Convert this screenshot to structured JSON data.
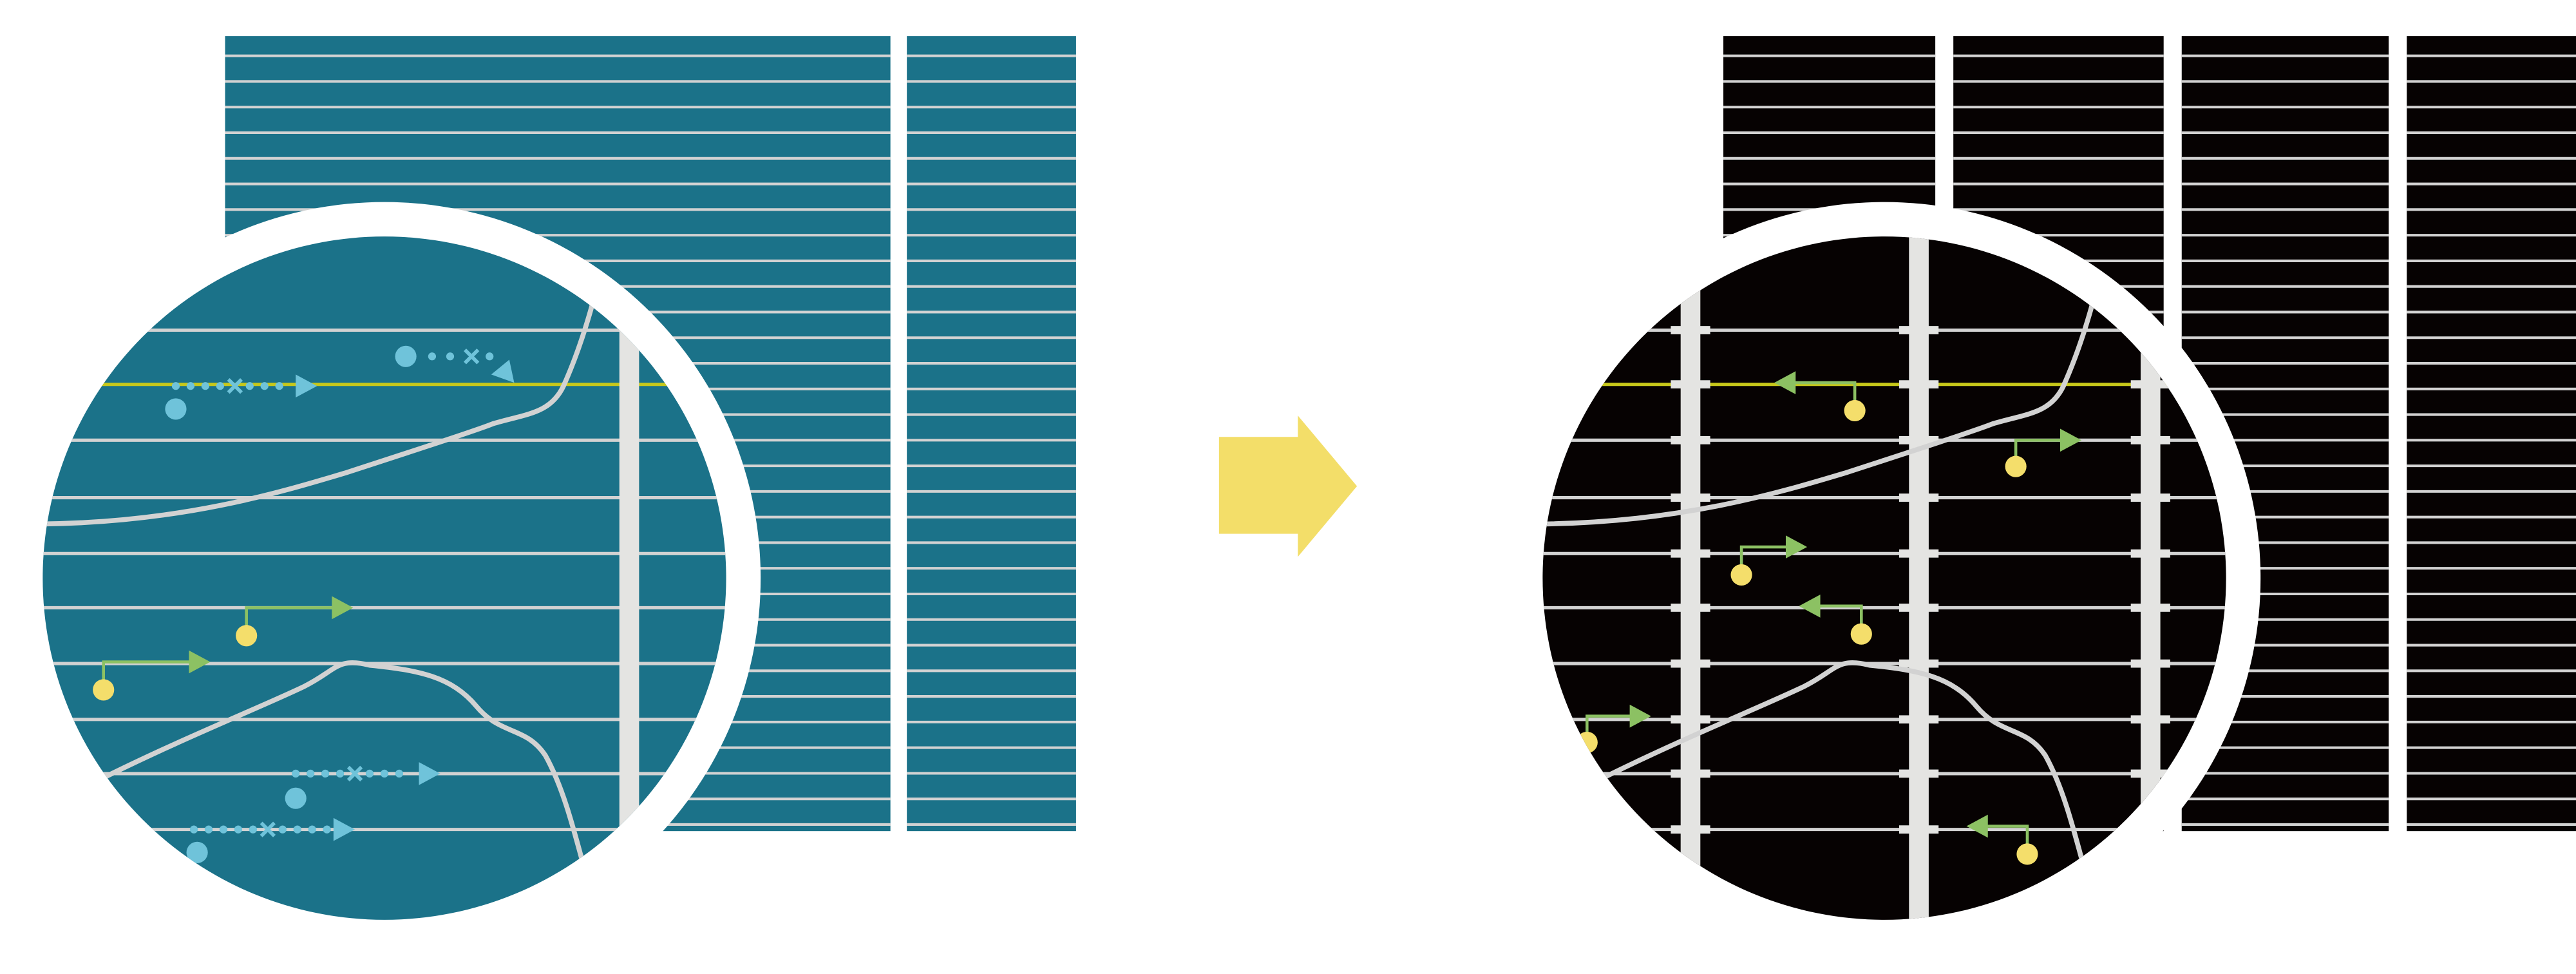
{
  "colors": {
    "before_background": "#1b7289",
    "after_background": "#060202",
    "grid_line": "#d2d2d2",
    "highlight_line": "#c7c81a",
    "cyan_marker": "#6fc3da",
    "green_arrow": "#8cc163",
    "yellow_dot": "#f4de6b",
    "transform_arrow": "#f3de69",
    "vertical_bar": "#e4e4e2"
  },
  "icons": {
    "transform": "right-arrow-icon",
    "before_zoom": "magnifier-circle-icon",
    "after_zoom": "magnifier-circle-icon"
  }
}
